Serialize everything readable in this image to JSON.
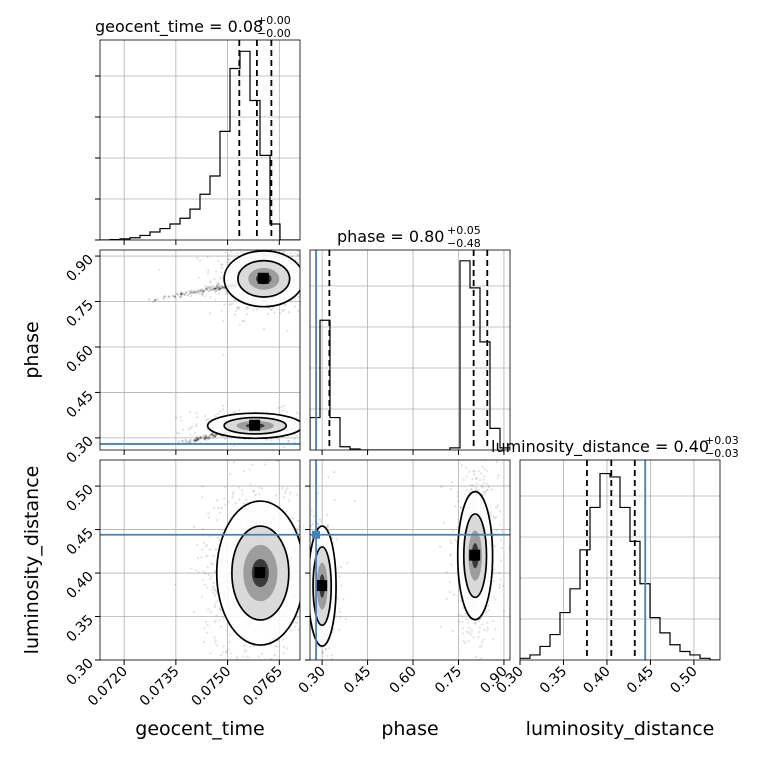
{
  "chart_data": {
    "type": "corner",
    "parameters": [
      "geocent_time",
      "phase",
      "luminosity_distance"
    ],
    "axis_labels": {
      "geocent_time": "geocent_time",
      "phase": "phase",
      "luminosity_distance": "luminosity_distance"
    },
    "ranges": {
      "geocent_time": [
        0.0713,
        0.0771
      ],
      "phase": [
        0.26,
        0.92
      ],
      "luminosity_distance": [
        0.3,
        0.53
      ]
    },
    "ticks": {
      "geocent_time": {
        "values": [
          0.072,
          0.0735,
          0.075,
          0.0765
        ],
        "labels": [
          "0.0720",
          "0.0735",
          "0.0750",
          "0.0765"
        ]
      },
      "phase": {
        "values": [
          0.3,
          0.45,
          0.6,
          0.75,
          0.9
        ],
        "labels": [
          "0.30",
          "0.45",
          "0.60",
          "0.75",
          "0.90"
        ]
      },
      "luminosity_distance": {
        "values": [
          0.3,
          0.35,
          0.4,
          0.45,
          0.5
        ],
        "labels": [
          "0.30",
          "0.35",
          "0.40",
          "0.45",
          "0.50"
        ]
      }
    },
    "titles": [
      {
        "param": "geocent_time",
        "text": "geocent_time = 0.08",
        "plus": "+0.00",
        "minus": "−0.00"
      },
      {
        "param": "phase",
        "text": "phase = 0.80",
        "plus": "+0.05",
        "minus": "−0.48"
      },
      {
        "param": "luminosity_distance",
        "text": "luminosity_distance = 0.40",
        "plus": "+0.03",
        "minus": "−0.03"
      }
    ],
    "truths": {
      "geocent_time": null,
      "phase": 0.28,
      "luminosity_distance": 0.444
    },
    "quantiles": {
      "geocent_time": [
        0.07534,
        0.07585,
        0.07627
      ],
      "phase": [
        0.324,
        0.8,
        0.845
      ],
      "luminosity_distance": [
        0.377,
        0.405,
        0.432
      ]
    },
    "histograms": {
      "geocent_time": {
        "bin_edges": [
          0.0713,
          0.07159,
          0.07188,
          0.07217,
          0.07246,
          0.07275,
          0.07304,
          0.07333,
          0.07362,
          0.07391,
          0.0742,
          0.07449,
          0.07478,
          0.07507,
          0.07536,
          0.07565,
          0.07594,
          0.07623,
          0.07652,
          0.07681,
          0.0771
        ],
        "counts": [
          0,
          0.3,
          1,
          2,
          4,
          7,
          10,
          14,
          19,
          27,
          40,
          56,
          95,
          150,
          165,
          122,
          74,
          14,
          0,
          0
        ]
      },
      "phase": {
        "bin_edges": [
          0.26,
          0.293,
          0.326,
          0.359,
          0.392,
          0.425,
          0.458,
          0.491,
          0.524,
          0.557,
          0.59,
          0.623,
          0.656,
          0.689,
          0.722,
          0.755,
          0.788,
          0.821,
          0.854,
          0.887,
          0.92
        ],
        "counts": [
          30,
          120,
          30,
          3,
          1,
          0,
          0,
          0,
          0,
          0,
          0,
          0,
          0,
          0,
          2,
          175,
          150,
          100,
          20,
          2
        ],
        "display_max": 185
      },
      "luminosity_distance": {
        "bin_edges": [
          0.3,
          0.3115,
          0.323,
          0.3345,
          0.346,
          0.3575,
          0.369,
          0.3805,
          0.392,
          0.4035,
          0.415,
          0.4265,
          0.438,
          0.4495,
          0.461,
          0.4725,
          0.484,
          0.4955,
          0.507,
          0.5185,
          0.53
        ],
        "counts": [
          1,
          3,
          8,
          15,
          28,
          42,
          65,
          90,
          110,
          108,
          90,
          70,
          45,
          25,
          16,
          9,
          5,
          3,
          1,
          0
        ],
        "display_max": 118
      }
    },
    "density_2d": {
      "phase_vs_geocent_time": {
        "modes": [
          {
            "x": 0.07605,
            "y": 0.825,
            "sx": 0.0005,
            "sy": 0.04,
            "weight": 0.68
          },
          {
            "x": 0.0758,
            "y": 0.34,
            "sx": 0.0006,
            "sy": 0.018,
            "weight": 0.32
          }
        ],
        "tail": [
          {
            "x0": 0.0725,
            "y0": 0.75,
            "x1": 0.0755,
            "y1": 0.81
          },
          {
            "x0": 0.0735,
            "y0": 0.28,
            "x1": 0.0755,
            "y1": 0.33
          }
        ]
      },
      "luminosity_distance_vs_geocent_time": {
        "modes": [
          {
            "x": 0.07595,
            "y": 0.4,
            "sx": 0.00055,
            "sy": 0.036,
            "weight": 1.0
          }
        ]
      },
      "luminosity_distance_vs_phase": {
        "modes": [
          {
            "x": 0.3,
            "y": 0.385,
            "sx": 0.02,
            "sy": 0.03,
            "weight": 0.34
          },
          {
            "x": 0.805,
            "y": 0.42,
            "sx": 0.025,
            "sy": 0.032,
            "weight": 0.66
          }
        ]
      }
    },
    "grid": true
  }
}
